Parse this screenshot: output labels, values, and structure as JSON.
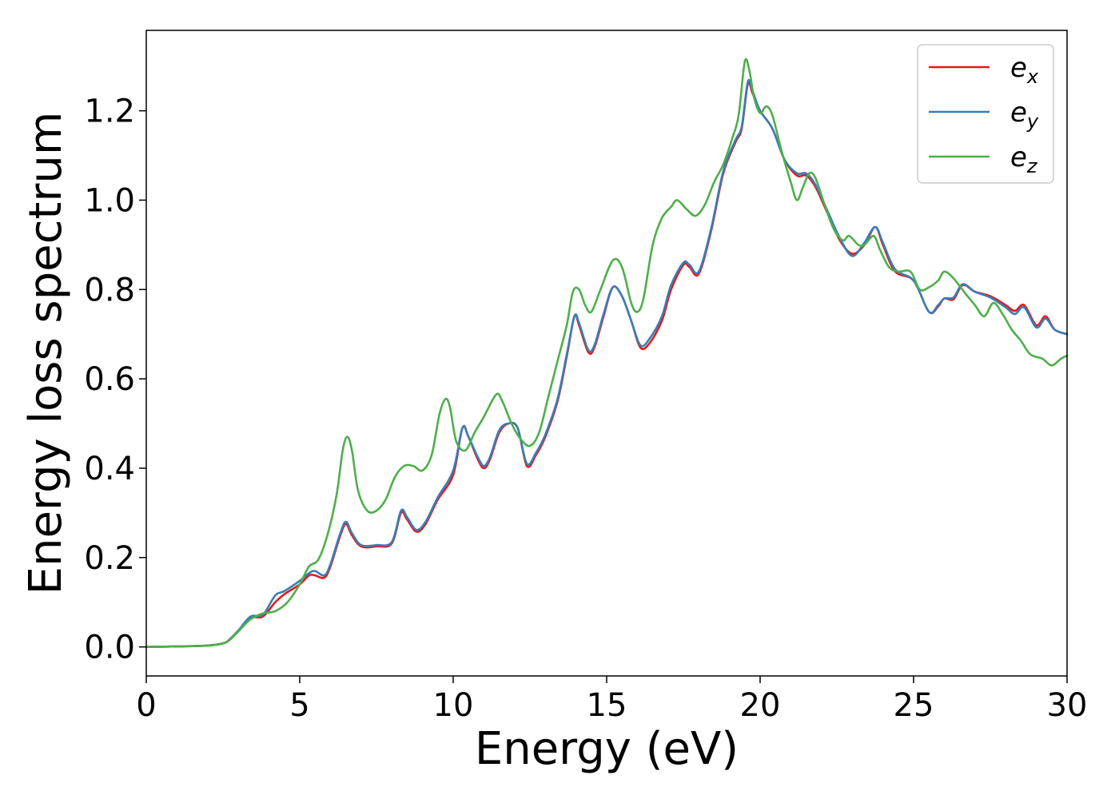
{
  "chart_data": {
    "type": "line",
    "title": "",
    "xlabel": "Energy (eV)",
    "ylabel": "Energy loss spectrum",
    "xlim": [
      0,
      30
    ],
    "ylim": [
      -0.065,
      1.38
    ],
    "xticks": [
      0,
      5,
      10,
      15,
      20,
      25,
      30
    ],
    "yticks": [
      0.0,
      0.2,
      0.4,
      0.6,
      0.8,
      1.0,
      1.2
    ],
    "xtick_labels": [
      "0",
      "5",
      "10",
      "15",
      "20",
      "25",
      "30"
    ],
    "ytick_labels": [
      "0.0",
      "0.2",
      "0.4",
      "0.6",
      "0.8",
      "1.0",
      "1.2"
    ],
    "grid": false,
    "legend_position": "top-right",
    "series": [
      {
        "name": "e_x",
        "label_base": "e",
        "label_sub": "x",
        "color": "#e41a1c",
        "points": [
          [
            0,
            0
          ],
          [
            1,
            0.001
          ],
          [
            2,
            0.003
          ],
          [
            2.5,
            0.008
          ],
          [
            2.7,
            0.015
          ],
          [
            3,
            0.035
          ],
          [
            3.4,
            0.065
          ],
          [
            3.8,
            0.068
          ],
          [
            4.2,
            0.1
          ],
          [
            4.5,
            0.118
          ],
          [
            5,
            0.14
          ],
          [
            5.3,
            0.16
          ],
          [
            5.5,
            0.16
          ],
          [
            5.8,
            0.155
          ],
          [
            6,
            0.18
          ],
          [
            6.3,
            0.245
          ],
          [
            6.5,
            0.275
          ],
          [
            6.7,
            0.25
          ],
          [
            7,
            0.225
          ],
          [
            7.5,
            0.225
          ],
          [
            8,
            0.232
          ],
          [
            8.3,
            0.3
          ],
          [
            8.5,
            0.285
          ],
          [
            8.8,
            0.258
          ],
          [
            9.1,
            0.275
          ],
          [
            9.5,
            0.33
          ],
          [
            10,
            0.385
          ],
          [
            10.3,
            0.49
          ],
          [
            10.5,
            0.47
          ],
          [
            10.8,
            0.42
          ],
          [
            11,
            0.4
          ],
          [
            11.2,
            0.42
          ],
          [
            11.5,
            0.48
          ],
          [
            11.8,
            0.5
          ],
          [
            12.1,
            0.49
          ],
          [
            12.4,
            0.405
          ],
          [
            12.7,
            0.43
          ],
          [
            13,
            0.47
          ],
          [
            13.4,
            0.55
          ],
          [
            13.7,
            0.65
          ],
          [
            13.95,
            0.74
          ],
          [
            14.1,
            0.72
          ],
          [
            14.4,
            0.66
          ],
          [
            14.6,
            0.67
          ],
          [
            14.9,
            0.74
          ],
          [
            15.2,
            0.805
          ],
          [
            15.5,
            0.785
          ],
          [
            15.8,
            0.73
          ],
          [
            16.1,
            0.67
          ],
          [
            16.4,
            0.68
          ],
          [
            16.8,
            0.73
          ],
          [
            17.1,
            0.8
          ],
          [
            17.5,
            0.855
          ],
          [
            17.7,
            0.85
          ],
          [
            18,
            0.835
          ],
          [
            18.4,
            0.93
          ],
          [
            18.8,
            1.06
          ],
          [
            19.2,
            1.13
          ],
          [
            19.4,
            1.16
          ],
          [
            19.6,
            1.26
          ],
          [
            19.75,
            1.24
          ],
          [
            20,
            1.2
          ],
          [
            20.4,
            1.16
          ],
          [
            20.8,
            1.09
          ],
          [
            21.2,
            1.055
          ],
          [
            21.5,
            1.055
          ],
          [
            21.8,
            1.03
          ],
          [
            22.2,
            0.97
          ],
          [
            22.6,
            0.91
          ],
          [
            23,
            0.88
          ],
          [
            23.4,
            0.9
          ],
          [
            23.75,
            0.94
          ],
          [
            24,
            0.9
          ],
          [
            24.4,
            0.84
          ],
          [
            25,
            0.82
          ],
          [
            25.5,
            0.75
          ],
          [
            25.8,
            0.762
          ],
          [
            26,
            0.78
          ],
          [
            26.3,
            0.778
          ],
          [
            26.6,
            0.81
          ],
          [
            27,
            0.795
          ],
          [
            27.5,
            0.785
          ],
          [
            28,
            0.765
          ],
          [
            28.3,
            0.752
          ],
          [
            28.6,
            0.765
          ],
          [
            29,
            0.72
          ],
          [
            29.3,
            0.74
          ],
          [
            29.6,
            0.71
          ],
          [
            30,
            0.7
          ]
        ]
      },
      {
        "name": "e_y",
        "label_base": "e",
        "label_sub": "y",
        "color": "#377eb8",
        "points": [
          [
            0,
            0
          ],
          [
            1,
            0.001
          ],
          [
            2,
            0.003
          ],
          [
            2.5,
            0.008
          ],
          [
            2.7,
            0.016
          ],
          [
            3,
            0.037
          ],
          [
            3.4,
            0.068
          ],
          [
            3.8,
            0.072
          ],
          [
            4.2,
            0.115
          ],
          [
            4.5,
            0.125
          ],
          [
            5,
            0.148
          ],
          [
            5.3,
            0.165
          ],
          [
            5.5,
            0.17
          ],
          [
            5.8,
            0.16
          ],
          [
            6,
            0.185
          ],
          [
            6.3,
            0.25
          ],
          [
            6.5,
            0.28
          ],
          [
            6.7,
            0.255
          ],
          [
            7,
            0.228
          ],
          [
            7.5,
            0.228
          ],
          [
            8,
            0.235
          ],
          [
            8.3,
            0.305
          ],
          [
            8.5,
            0.29
          ],
          [
            8.8,
            0.262
          ],
          [
            9.1,
            0.28
          ],
          [
            9.5,
            0.335
          ],
          [
            10,
            0.395
          ],
          [
            10.3,
            0.49
          ],
          [
            10.5,
            0.47
          ],
          [
            10.8,
            0.425
          ],
          [
            11,
            0.405
          ],
          [
            11.2,
            0.425
          ],
          [
            11.5,
            0.485
          ],
          [
            11.8,
            0.5
          ],
          [
            12.1,
            0.49
          ],
          [
            12.4,
            0.41
          ],
          [
            12.7,
            0.435
          ],
          [
            13,
            0.475
          ],
          [
            13.4,
            0.555
          ],
          [
            13.7,
            0.655
          ],
          [
            13.95,
            0.74
          ],
          [
            14.1,
            0.725
          ],
          [
            14.4,
            0.665
          ],
          [
            14.6,
            0.675
          ],
          [
            14.9,
            0.745
          ],
          [
            15.2,
            0.805
          ],
          [
            15.5,
            0.785
          ],
          [
            15.8,
            0.73
          ],
          [
            16.1,
            0.675
          ],
          [
            16.4,
            0.69
          ],
          [
            16.8,
            0.74
          ],
          [
            17.1,
            0.81
          ],
          [
            17.5,
            0.86
          ],
          [
            17.7,
            0.855
          ],
          [
            18,
            0.84
          ],
          [
            18.4,
            0.935
          ],
          [
            18.8,
            1.065
          ],
          [
            19.2,
            1.135
          ],
          [
            19.4,
            1.165
          ],
          [
            19.6,
            1.265
          ],
          [
            19.75,
            1.245
          ],
          [
            20,
            1.2
          ],
          [
            20.4,
            1.16
          ],
          [
            20.8,
            1.09
          ],
          [
            21.2,
            1.06
          ],
          [
            21.5,
            1.06
          ],
          [
            21.8,
            1.035
          ],
          [
            22.2,
            0.975
          ],
          [
            22.6,
            0.915
          ],
          [
            23,
            0.875
          ],
          [
            23.4,
            0.905
          ],
          [
            23.75,
            0.94
          ],
          [
            24,
            0.905
          ],
          [
            24.4,
            0.845
          ],
          [
            25,
            0.82
          ],
          [
            25.5,
            0.75
          ],
          [
            25.8,
            0.765
          ],
          [
            26,
            0.78
          ],
          [
            26.3,
            0.782
          ],
          [
            26.6,
            0.812
          ],
          [
            27,
            0.795
          ],
          [
            27.5,
            0.782
          ],
          [
            28,
            0.76
          ],
          [
            28.3,
            0.745
          ],
          [
            28.6,
            0.76
          ],
          [
            29,
            0.715
          ],
          [
            29.3,
            0.735
          ],
          [
            29.6,
            0.71
          ],
          [
            30,
            0.7
          ]
        ]
      },
      {
        "name": "e_z",
        "label_base": "e",
        "label_sub": "z",
        "color": "#4daf4a",
        "points": [
          [
            0,
            0
          ],
          [
            1,
            0.001
          ],
          [
            2,
            0.003
          ],
          [
            2.5,
            0.008
          ],
          [
            2.7,
            0.015
          ],
          [
            3,
            0.035
          ],
          [
            3.4,
            0.062
          ],
          [
            3.8,
            0.075
          ],
          [
            4.2,
            0.08
          ],
          [
            4.6,
            0.1
          ],
          [
            5,
            0.14
          ],
          [
            5.3,
            0.18
          ],
          [
            5.6,
            0.195
          ],
          [
            5.9,
            0.25
          ],
          [
            6.2,
            0.34
          ],
          [
            6.4,
            0.44
          ],
          [
            6.55,
            0.47
          ],
          [
            6.7,
            0.44
          ],
          [
            6.9,
            0.35
          ],
          [
            7.2,
            0.305
          ],
          [
            7.5,
            0.305
          ],
          [
            7.8,
            0.33
          ],
          [
            8.1,
            0.38
          ],
          [
            8.4,
            0.405
          ],
          [
            8.7,
            0.405
          ],
          [
            9,
            0.395
          ],
          [
            9.3,
            0.43
          ],
          [
            9.55,
            0.52
          ],
          [
            9.75,
            0.555
          ],
          [
            9.9,
            0.535
          ],
          [
            10.1,
            0.46
          ],
          [
            10.4,
            0.44
          ],
          [
            10.7,
            0.48
          ],
          [
            11,
            0.515
          ],
          [
            11.4,
            0.565
          ],
          [
            11.6,
            0.55
          ],
          [
            11.9,
            0.5
          ],
          [
            12.2,
            0.465
          ],
          [
            12.5,
            0.45
          ],
          [
            12.8,
            0.48
          ],
          [
            13.1,
            0.56
          ],
          [
            13.4,
            0.64
          ],
          [
            13.7,
            0.72
          ],
          [
            13.9,
            0.795
          ],
          [
            14.1,
            0.8
          ],
          [
            14.3,
            0.765
          ],
          [
            14.5,
            0.75
          ],
          [
            14.8,
            0.8
          ],
          [
            15.2,
            0.865
          ],
          [
            15.5,
            0.85
          ],
          [
            15.8,
            0.77
          ],
          [
            16,
            0.75
          ],
          [
            16.2,
            0.78
          ],
          [
            16.5,
            0.9
          ],
          [
            16.8,
            0.96
          ],
          [
            17.1,
            0.985
          ],
          [
            17.3,
            1.0
          ],
          [
            17.6,
            0.98
          ],
          [
            17.9,
            0.965
          ],
          [
            18.2,
            0.99
          ],
          [
            18.5,
            1.04
          ],
          [
            18.8,
            1.08
          ],
          [
            19.1,
            1.14
          ],
          [
            19.3,
            1.19
          ],
          [
            19.5,
            1.31
          ],
          [
            19.65,
            1.29
          ],
          [
            19.8,
            1.23
          ],
          [
            20,
            1.195
          ],
          [
            20.2,
            1.21
          ],
          [
            20.4,
            1.19
          ],
          [
            20.7,
            1.11
          ],
          [
            21,
            1.04
          ],
          [
            21.2,
            1.0
          ],
          [
            21.4,
            1.03
          ],
          [
            21.6,
            1.06
          ],
          [
            21.8,
            1.05
          ],
          [
            22.1,
            0.99
          ],
          [
            22.4,
            0.935
          ],
          [
            22.7,
            0.91
          ],
          [
            22.9,
            0.92
          ],
          [
            23.2,
            0.9
          ],
          [
            23.4,
            0.9
          ],
          [
            23.7,
            0.92
          ],
          [
            23.9,
            0.89
          ],
          [
            24.2,
            0.85
          ],
          [
            24.5,
            0.84
          ],
          [
            24.9,
            0.84
          ],
          [
            25.2,
            0.8
          ],
          [
            25.5,
            0.805
          ],
          [
            25.8,
            0.82
          ],
          [
            26,
            0.84
          ],
          [
            26.3,
            0.825
          ],
          [
            26.7,
            0.79
          ],
          [
            27,
            0.765
          ],
          [
            27.3,
            0.74
          ],
          [
            27.6,
            0.77
          ],
          [
            27.9,
            0.745
          ],
          [
            28.2,
            0.71
          ],
          [
            28.5,
            0.685
          ],
          [
            28.8,
            0.655
          ],
          [
            29.2,
            0.645
          ],
          [
            29.5,
            0.63
          ],
          [
            29.8,
            0.645
          ],
          [
            30,
            0.652
          ]
        ]
      }
    ]
  }
}
